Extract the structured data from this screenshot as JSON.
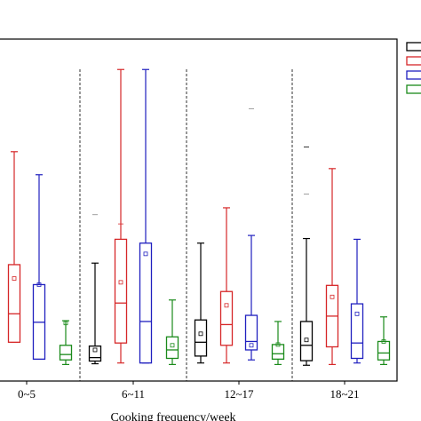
{
  "chart_data": {
    "type": "box",
    "xlabel": "Cooking frequency/week",
    "ylabel": "",
    "categories": [
      "0~5",
      "6~11",
      "12~17",
      "18~21"
    ],
    "group_dividers": true,
    "legend": {
      "placement": "top-right",
      "entries": 4
    },
    "series": [
      {
        "color": "#000000",
        "boxes": [
          {
            "min": null,
            "q1": null,
            "median": null,
            "q3": null,
            "max": null,
            "mean": null
          },
          {
            "min": 0.4,
            "q1": 0.75,
            "median": 1.2,
            "q3": 2.7,
            "max": 13.5,
            "mean": 2.2,
            "outliers": []
          },
          {
            "min": 0.5,
            "q1": 1.4,
            "median": 3.2,
            "q3": 6.1,
            "max": 16.1,
            "mean": 4.3,
            "outliers": []
          },
          {
            "min": 0.2,
            "q1": 0.8,
            "median": 2.8,
            "q3": 5.9,
            "max": 16.7,
            "mean": 3.5,
            "outliers": [
              28.6
            ]
          }
        ]
      },
      {
        "color": "#d62728",
        "boxes": [
          {
            "min": 3.2,
            "q1": 3.2,
            "median": 6.9,
            "q3": 13.3,
            "max": 28.0,
            "mean": 11.5
          },
          {
            "min": 0.5,
            "q1": 3.1,
            "median": 8.3,
            "q3": 16.6,
            "max": 38.7,
            "mean": 11.0,
            "outliers": [
              18.6
            ]
          },
          {
            "min": 0.5,
            "q1": 2.8,
            "median": 5.5,
            "q3": 9.8,
            "max": 20.7,
            "mean": 8.0
          },
          {
            "min": 0.3,
            "q1": 2.6,
            "median": 6.6,
            "q3": 10.6,
            "max": 25.8,
            "mean": 9.1
          }
        ]
      },
      {
        "color": "#1f1fbf",
        "boxes": [
          {
            "min": 1.0,
            "q1": 1.0,
            "median": 5.8,
            "q3": 10.7,
            "max": 25.0,
            "mean": 10.7
          },
          {
            "min": 0.5,
            "q1": 0.5,
            "median": 5.9,
            "q3": 16.1,
            "max": 38.7,
            "mean": 14.7
          },
          {
            "min": 0.9,
            "q1": 2.2,
            "median": 3.3,
            "q3": 6.7,
            "max": 17.1,
            "mean": 2.8
          },
          {
            "min": 0.5,
            "q1": 1.1,
            "median": 3.1,
            "q3": 8.2,
            "max": 16.6,
            "mean": 6.9
          }
        ]
      },
      {
        "color": "#1a8a1a",
        "boxes": [
          {
            "min": 0.3,
            "q1": 0.9,
            "median": 1.6,
            "q3": 2.8,
            "max": 6.0,
            "mean": 5.7
          },
          {
            "min": 0.3,
            "q1": 1.1,
            "median": 2.2,
            "q3": 3.9,
            "max": 8.7,
            "mean": 2.8
          },
          {
            "min": 0.3,
            "q1": 1.0,
            "median": 1.7,
            "q3": 2.9,
            "max": 5.9,
            "mean": 2.9
          },
          {
            "min": 0.3,
            "q1": 0.9,
            "median": 1.8,
            "q3": 3.3,
            "max": 6.5,
            "mean": 3.3
          }
        ]
      }
    ],
    "outliers_extra": [
      {
        "category": "12~17",
        "series": 2,
        "y": 33.6
      },
      {
        "category": "18~21",
        "series": 0,
        "y": 22.5
      },
      {
        "category": "6~11",
        "series": 0,
        "y": 19.8
      }
    ],
    "ylim": [
      0,
      40
    ],
    "xlim_visible": "partial"
  }
}
